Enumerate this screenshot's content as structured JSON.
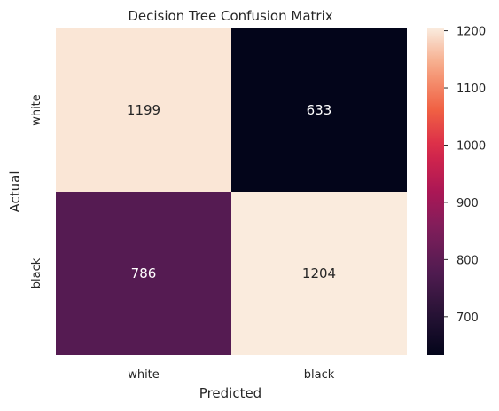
{
  "chart_data": {
    "type": "heatmap",
    "title": "Decision Tree Confusion Matrix",
    "xlabel": "Predicted",
    "ylabel": "Actual",
    "x_categories": [
      "white",
      "black"
    ],
    "y_categories": [
      "white",
      "black"
    ],
    "values": [
      [
        1199,
        633
      ],
      [
        786,
        1204
      ]
    ],
    "colorbar": {
      "colormap": "rocket",
      "range": [
        633,
        1204
      ],
      "ticks": [
        700,
        800,
        900,
        1000,
        1100,
        1200
      ]
    },
    "grid": false
  }
}
